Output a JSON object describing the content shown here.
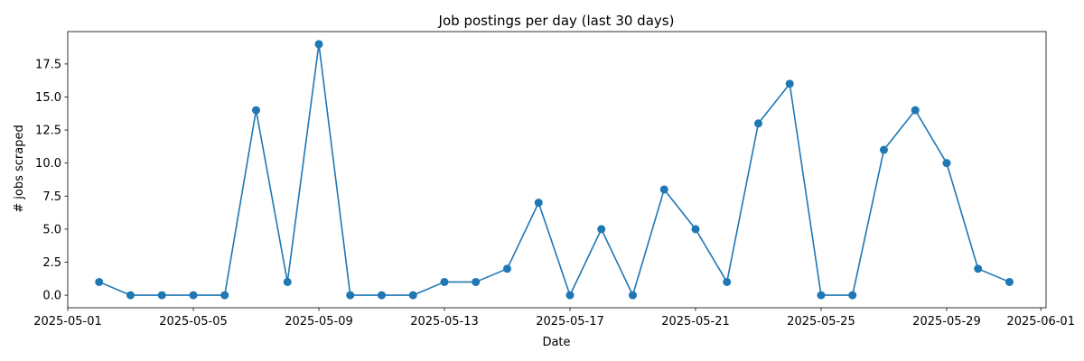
{
  "chart_data": {
    "type": "line",
    "title": "Job postings per day (last 30 days)",
    "xlabel": "Date",
    "ylabel": "# jobs scraped",
    "x": [
      "2025-05-02",
      "2025-05-03",
      "2025-05-04",
      "2025-05-05",
      "2025-05-06",
      "2025-05-07",
      "2025-05-08",
      "2025-05-09",
      "2025-05-10",
      "2025-05-11",
      "2025-05-12",
      "2025-05-13",
      "2025-05-14",
      "2025-05-15",
      "2025-05-16",
      "2025-05-17",
      "2025-05-18",
      "2025-05-19",
      "2025-05-20",
      "2025-05-21",
      "2025-05-22",
      "2025-05-23",
      "2025-05-24",
      "2025-05-25",
      "2025-05-26",
      "2025-05-27",
      "2025-05-28",
      "2025-05-29",
      "2025-05-30",
      "2025-05-31"
    ],
    "values": [
      1,
      0,
      0,
      0,
      0,
      14,
      1,
      19,
      0,
      0,
      0,
      1,
      1,
      2,
      7,
      0,
      5,
      0,
      8,
      5,
      1,
      13,
      16,
      0,
      0,
      11,
      14,
      10,
      2,
      1
    ],
    "xlim": [
      "2025-05-01T00:00",
      "2025-06-01T04:00"
    ],
    "ylim": [
      -0.95,
      19.95
    ],
    "xticks": [
      "2025-05-01",
      "2025-05-05",
      "2025-05-09",
      "2025-05-13",
      "2025-05-17",
      "2025-05-21",
      "2025-05-25",
      "2025-05-29",
      "2025-06-01"
    ],
    "yticks": [
      0.0,
      2.5,
      5.0,
      7.5,
      10.0,
      12.5,
      15.0,
      17.5
    ],
    "ytick_labels": [
      "0.0",
      "2.5",
      "5.0",
      "7.5",
      "10.0",
      "12.5",
      "15.0",
      "17.5"
    ],
    "grid": false,
    "color": "#1f77b4"
  }
}
